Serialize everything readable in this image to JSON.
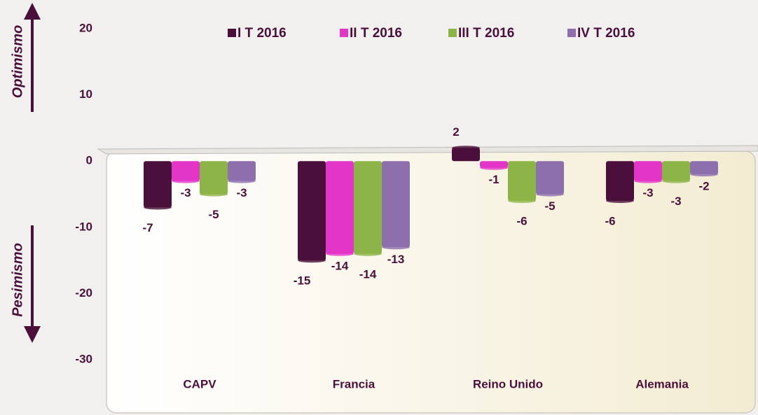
{
  "chart_data": {
    "type": "bar",
    "categories": [
      "CAPV",
      "Francia",
      "Reino Unido",
      "Alemania"
    ],
    "series": [
      {
        "name": "I T 2016",
        "color": "#4a0f3a",
        "values": [
          -7,
          -15,
          2,
          -6
        ]
      },
      {
        "name": "II T 2016",
        "color": "#e335c8",
        "values": [
          -3,
          -14,
          -1,
          -3
        ]
      },
      {
        "name": "III T 2016",
        "color": "#8db446",
        "values": [
          -5,
          -14,
          -6,
          -3
        ]
      },
      {
        "name": "IV T 2016",
        "color": "#8e6fae",
        "values": [
          -3,
          -13,
          -5,
          -2
        ]
      }
    ],
    "ylim": [
      -38,
      24
    ],
    "yticks": [
      -30,
      -20,
      -10,
      0,
      10,
      20
    ],
    "annotations": [
      "Optimismo",
      "Pesimismo"
    ],
    "legend": "top"
  }
}
